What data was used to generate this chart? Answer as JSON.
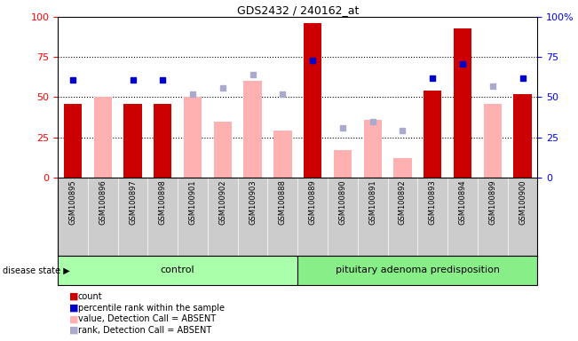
{
  "title": "GDS2432 / 240162_at",
  "samples": [
    "GSM100895",
    "GSM100896",
    "GSM100897",
    "GSM100898",
    "GSM100901",
    "GSM100902",
    "GSM100903",
    "GSM100888",
    "GSM100889",
    "GSM100890",
    "GSM100891",
    "GSM100892",
    "GSM100893",
    "GSM100894",
    "GSM100899",
    "GSM100900"
  ],
  "group_labels": [
    "control",
    "pituitary adenoma predisposition"
  ],
  "group_control_count": 8,
  "count_values": [
    46,
    null,
    46,
    46,
    null,
    null,
    null,
    null,
    96,
    null,
    null,
    null,
    54,
    93,
    null,
    52
  ],
  "percentile_values": [
    61,
    null,
    61,
    61,
    null,
    null,
    null,
    null,
    73,
    null,
    null,
    null,
    62,
    71,
    null,
    62
  ],
  "value_absent": [
    null,
    50,
    null,
    null,
    50,
    35,
    60,
    29,
    null,
    17,
    36,
    12,
    null,
    null,
    46,
    null
  ],
  "rank_absent": [
    null,
    null,
    null,
    null,
    52,
    56,
    64,
    52,
    null,
    31,
    35,
    29,
    null,
    null,
    57,
    null
  ],
  "bar_color_red": "#CC0000",
  "bar_color_pink": "#FFB0B0",
  "dot_color_blue": "#0000CC",
  "dot_color_lavender": "#AAAACC",
  "bg_color_plot": "#FFFFFF",
  "bg_color_xaxis": "#CCCCCC",
  "bg_green_light": "#AAFFAA",
  "bg_green_dark": "#88EE88",
  "ylim": [
    0,
    100
  ],
  "yticks": [
    0,
    25,
    50,
    75,
    100
  ],
  "legend_items": [
    {
      "label": "count",
      "color": "#CC0000"
    },
    {
      "label": "percentile rank within the sample",
      "color": "#0000CC"
    },
    {
      "label": "value, Detection Call = ABSENT",
      "color": "#FFB0B0"
    },
    {
      "label": "rank, Detection Call = ABSENT",
      "color": "#AAAACC"
    }
  ]
}
